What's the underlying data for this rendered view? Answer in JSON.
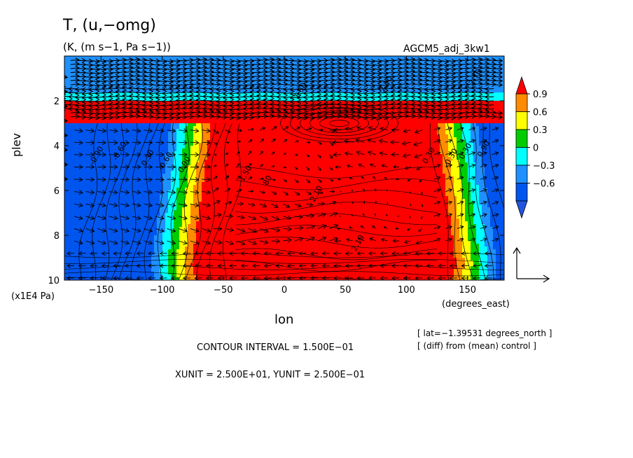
{
  "header": {
    "title": "T, (u,−omg)",
    "subtitle": "(K, (m s−1, Pa s−1))",
    "experiment": "AGCM5_adj_3kw1"
  },
  "footer": {
    "info_lat": "[ lat=−1.39531 degrees_north ]",
    "info_diff": "[ (diff) from (mean) control ]",
    "contour_interval": "CONTOUR INTERVAL = 1.500E−01",
    "vector_units": "XUNIT = 2.500E+01, YUNIT = 2.500E−01"
  },
  "chart_data": {
    "type": "heatmap",
    "title": "T, (u,−omg)",
    "subtitle": "(K, (m s−1, Pa s−1))",
    "xlabel": "lon",
    "xunit": "(degrees_east)",
    "ylabel": "plev",
    "yunit": "(x1E4 Pa)",
    "xlim": [
      -180,
      180
    ],
    "ylim": [
      10,
      0
    ],
    "x_ticks": [
      -150,
      -100,
      -50,
      0,
      50,
      100,
      150
    ],
    "x_tick_labels": [
      "−150",
      "−100",
      "−50",
      "0",
      "50",
      "100",
      "150"
    ],
    "y_ticks": [
      2,
      4,
      6,
      8,
      10
    ],
    "y_tick_labels": [
      "2",
      "4",
      "6",
      "8",
      "10"
    ],
    "colorbar": {
      "levels": [
        0.9,
        0.6,
        0.3,
        0,
        -0.3,
        -0.6
      ],
      "labels": [
        "0.9",
        "0.6",
        "0.3",
        "0",
        "−0.3",
        "−0.6"
      ],
      "colors": [
        "#ff0000",
        "#ff8c00",
        "#ffff00",
        "#00cc00",
        "#00ffff",
        "#1e90ff",
        "#0055ee",
        "#2255dd"
      ]
    },
    "field_description": {
      "upper_band_plev": [
        0.5,
        2.0
      ],
      "upper_band_value": -0.6,
      "warm_band_plev": [
        2.0,
        3.0
      ],
      "warm_band_value": 0.9,
      "warm_region_lon": [
        -60,
        125
      ],
      "warm_region_plev": [
        3.0,
        10.0
      ],
      "cold_region_value": -0.6
    },
    "contour_labels": [
      {
        "text": "2.70",
        "lon": 158,
        "plev": 1.0
      },
      {
        "text": "2.10",
        "lon": 85,
        "plev": 1.3
      },
      {
        "text": "1.50",
        "lon": 15,
        "plev": 1.6
      },
      {
        "text": "0.60",
        "lon": -95,
        "plev": 4.7
      },
      {
        "text": "0.90",
        "lon": -80,
        "plev": 4.9
      },
      {
        "text": "0.30",
        "lon": -110,
        "plev": 4.6
      },
      {
        "text": "1.50",
        "lon": -30,
        "plev": 5.3
      },
      {
        "text": "80",
        "lon": -12,
        "plev": 5.6
      },
      {
        "text": "2.10",
        "lon": 28,
        "plev": 6.2
      },
      {
        "text": "2.10",
        "lon": 62,
        "plev": 8.4
      },
      {
        "text": "-0.90",
        "lon": -152,
        "plev": 4.5
      },
      {
        "text": "-0.60",
        "lon": -133,
        "plev": 4.3
      },
      {
        "text": "0.30",
        "lon": 120,
        "plev": 4.5
      },
      {
        "text": "-0.30",
        "lon": 138,
        "plev": 4.6
      },
      {
        "text": "0.30",
        "lon": 150,
        "plev": 4.3
      },
      {
        "text": "0.90",
        "lon": 165,
        "plev": 4.2
      }
    ],
    "vector_reference": {
      "u": 25.0,
      "omg": 0.25
    }
  }
}
